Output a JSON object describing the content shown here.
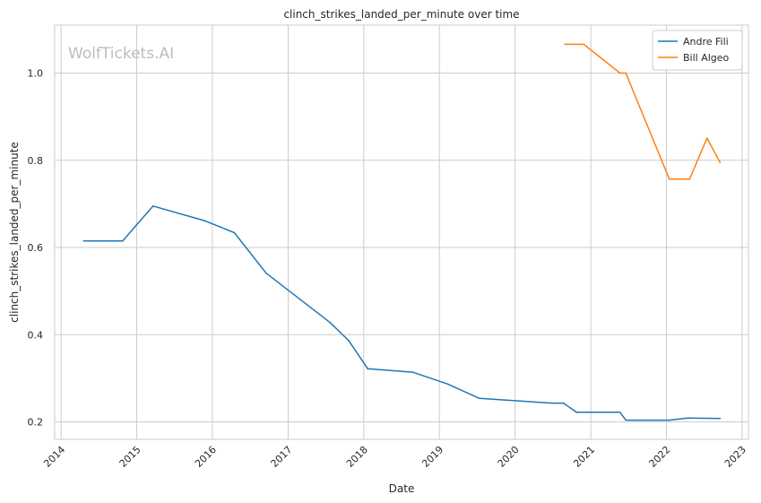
{
  "chart_data": {
    "type": "line",
    "title": "clinch_strikes_landed_per_minute over time",
    "xlabel": "Date",
    "ylabel": "clinch_strikes_landed_per_minute",
    "watermark": "WolfTickets.AI",
    "xlim": [
      "2013-12-01",
      "2023-02-01"
    ],
    "ylim": [
      0.16,
      1.11
    ],
    "x_ticks": [
      "2014",
      "2015",
      "2016",
      "2017",
      "2018",
      "2019",
      "2020",
      "2021",
      "2022",
      "2023"
    ],
    "y_ticks": [
      0.2,
      0.4,
      0.6,
      0.8,
      1.0
    ],
    "y_tick_labels": [
      "0.2",
      "0.4",
      "0.6",
      "0.8",
      "1.0"
    ],
    "grid": true,
    "legend_position": "top-right",
    "series": [
      {
        "name": "Andre Fili",
        "color": "#1f77b4",
        "x": [
          "2014-04-20",
          "2014-10-25",
          "2015-03-21",
          "2015-11-28",
          "2016-04-16",
          "2016-09-17",
          "2017-07-22",
          "2017-10-21",
          "2018-01-20",
          "2018-08-25",
          "2019-02-09",
          "2019-07-13",
          "2020-06-27",
          "2020-08-22",
          "2020-10-24",
          "2021-05-22",
          "2021-06-19",
          "2022-01-15",
          "2022-04-16",
          "2022-09-17"
        ],
        "values": [
          0.615,
          0.615,
          0.695,
          0.661,
          0.634,
          0.541,
          0.428,
          0.386,
          0.322,
          0.314,
          0.287,
          0.254,
          0.243,
          0.243,
          0.222,
          0.222,
          0.204,
          0.204,
          0.209,
          0.208
        ]
      },
      {
        "name": "Bill Algeo",
        "color": "#ff7f0e",
        "x": [
          "2020-08-29",
          "2020-11-28",
          "2021-05-22",
          "2021-06-19",
          "2022-01-15",
          "2022-04-23",
          "2022-07-16",
          "2022-09-17"
        ],
        "values": [
          1.066,
          1.066,
          1.0,
          1.0,
          0.757,
          0.757,
          0.851,
          0.795
        ]
      }
    ]
  }
}
